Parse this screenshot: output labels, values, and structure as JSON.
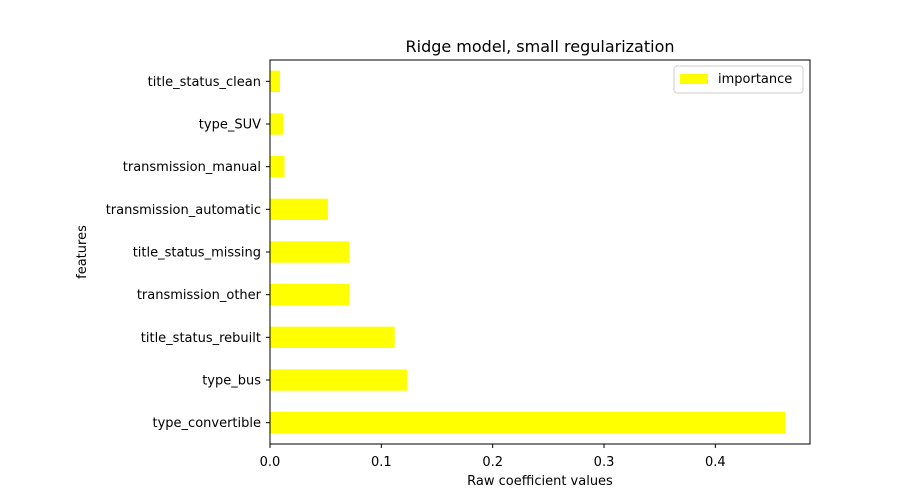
{
  "chart_data": {
    "type": "bar",
    "orientation": "horizontal",
    "title": "Ridge model, small regularization",
    "xlabel": "Raw coefficient values",
    "ylabel": "features",
    "xlim": [
      0,
      0.485
    ],
    "xticks": [
      0.0,
      0.1,
      0.2,
      0.3,
      0.4
    ],
    "xtick_labels": [
      "0.0",
      "0.1",
      "0.2",
      "0.3",
      "0.4"
    ],
    "grid": false,
    "legend_position": "top-right",
    "categories": [
      "type_convertible",
      "type_bus",
      "title_status_rebuilt",
      "transmission_other",
      "title_status_missing",
      "transmission_automatic",
      "transmission_manual",
      "type_SUV",
      "title_status_clean"
    ],
    "series": [
      {
        "name": "importance",
        "color": "#ffff00",
        "values": [
          0.463,
          0.123,
          0.112,
          0.071,
          0.071,
          0.052,
          0.013,
          0.012,
          0.009
        ]
      }
    ]
  }
}
